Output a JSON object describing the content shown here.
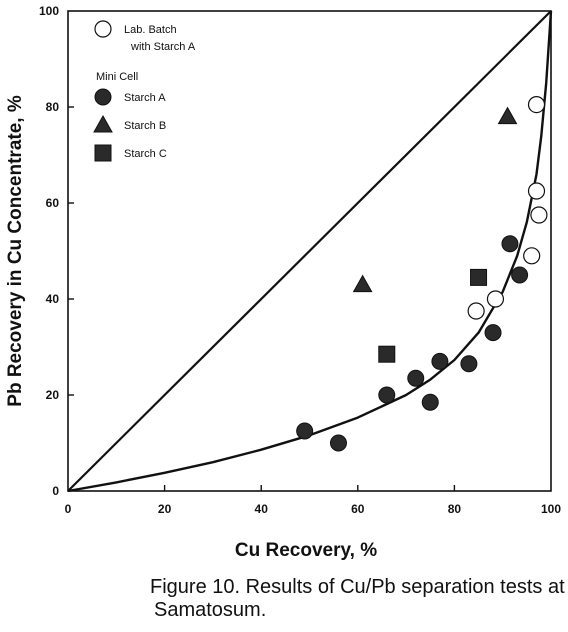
{
  "caption": {
    "line1": "Figure 10.  Results of Cu/Pb separation tests at",
    "line2": "Samatosum."
  },
  "chart_data": {
    "type": "scatter",
    "xlabel": "Cu Recovery, %",
    "ylabel": "Pb Recovery in Cu Concentrate, %",
    "xlim": [
      0,
      100
    ],
    "ylim": [
      0,
      100
    ],
    "xticks": [
      "0",
      "20",
      "40",
      "60",
      "80",
      "100"
    ],
    "yticks": [
      "0",
      "20",
      "40",
      "60",
      "80",
      "100"
    ],
    "grid": false,
    "legend": {
      "position": "top-left",
      "group_title": "Mini Cell",
      "lab_label_line1": "Lab. Batch",
      "lab_label_line2": "with Starch A"
    },
    "series": [
      {
        "name": "Lab. Batch with Starch A",
        "marker": "open-circle",
        "points": [
          [
            84.5,
            37.5
          ],
          [
            88.5,
            40
          ],
          [
            96,
            49
          ],
          [
            97.5,
            57.5
          ],
          [
            97,
            62.5
          ],
          [
            97,
            80.5
          ]
        ]
      },
      {
        "name": "Starch A",
        "marker": "filled-circle",
        "points": [
          [
            49,
            12.5
          ],
          [
            56,
            10
          ],
          [
            66,
            20
          ],
          [
            72,
            23.5
          ],
          [
            75,
            18.5
          ],
          [
            77,
            27
          ],
          [
            83,
            26.5
          ],
          [
            88,
            33
          ],
          [
            91.5,
            51.5
          ],
          [
            93.5,
            45
          ]
        ]
      },
      {
        "name": "Starch B",
        "marker": "filled-triangle",
        "points": [
          [
            61,
            43
          ],
          [
            91,
            78
          ]
        ]
      },
      {
        "name": "Starch C",
        "marker": "filled-square",
        "points": [
          [
            66,
            28.5
          ],
          [
            85,
            44.5
          ]
        ]
      }
    ],
    "reference_line": {
      "points": [
        [
          0,
          0
        ],
        [
          100,
          100
        ]
      ]
    },
    "fitted_curve": {
      "points": [
        [
          0,
          0
        ],
        [
          10,
          1.8
        ],
        [
          20,
          3.8
        ],
        [
          30,
          6
        ],
        [
          40,
          8.6
        ],
        [
          50,
          11.6
        ],
        [
          60,
          15.3
        ],
        [
          70,
          20
        ],
        [
          75,
          23.2
        ],
        [
          80,
          27.3
        ],
        [
          85,
          33
        ],
        [
          90,
          41.5
        ],
        [
          93,
          49
        ],
        [
          95,
          56
        ],
        [
          97,
          66
        ],
        [
          98,
          74
        ],
        [
          99,
          85
        ],
        [
          100,
          100
        ]
      ]
    }
  }
}
